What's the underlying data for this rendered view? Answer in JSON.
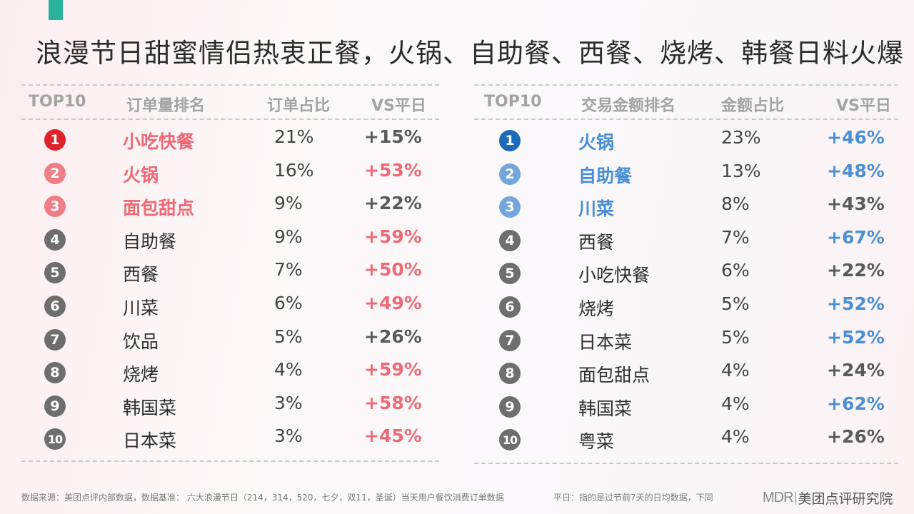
{
  "title": "浪漫节日甜蜜情侣热衷正餐，火锅、自助餐、西餐、烧烤、韩餐日料火爆",
  "colors": {
    "accent": "#2ab39a",
    "red_rank1": "#e0232a",
    "pink_rank": "#ef7e86",
    "pink_text": "#ee6a76",
    "gray_badge": "#6e6e6e",
    "blue_rank1": "#1d6bb8",
    "blue_rank": "#72a6dd",
    "blue_text": "#4a8fd6"
  },
  "left": {
    "headers": [
      "TOP10",
      "订单量排名",
      "订单占比",
      "VS平日"
    ],
    "rows": [
      {
        "rank": "1",
        "name": "小吃快餐",
        "pct": "21%",
        "vs": "+15%"
      },
      {
        "rank": "2",
        "name": "火锅",
        "pct": "16%",
        "vs": "+53%"
      },
      {
        "rank": "3",
        "name": "面包甜点",
        "pct": "9%",
        "vs": "+22%"
      },
      {
        "rank": "4",
        "name": "自助餐",
        "pct": "9%",
        "vs": "+59%"
      },
      {
        "rank": "5",
        "name": "西餐",
        "pct": "7%",
        "vs": "+50%"
      },
      {
        "rank": "6",
        "name": "川菜",
        "pct": "6%",
        "vs": "+49%"
      },
      {
        "rank": "7",
        "name": "饮品",
        "pct": "5%",
        "vs": "+26%"
      },
      {
        "rank": "8",
        "name": "烧烤",
        "pct": "4%",
        "vs": "+59%"
      },
      {
        "rank": "9",
        "name": "韩国菜",
        "pct": "3%",
        "vs": "+58%"
      },
      {
        "rank": "10",
        "name": "日本菜",
        "pct": "3%",
        "vs": "+45%"
      }
    ]
  },
  "right": {
    "headers": [
      "TOP10",
      "交易金额排名",
      "金额占比",
      "VS平日"
    ],
    "rows": [
      {
        "rank": "1",
        "name": "火锅",
        "pct": "23%",
        "vs": "+46%"
      },
      {
        "rank": "2",
        "name": "自助餐",
        "pct": "13%",
        "vs": "+48%"
      },
      {
        "rank": "3",
        "name": "川菜",
        "pct": "8%",
        "vs": "+43%"
      },
      {
        "rank": "4",
        "name": "西餐",
        "pct": "7%",
        "vs": "+67%"
      },
      {
        "rank": "5",
        "name": "小吃快餐",
        "pct": "6%",
        "vs": "+22%"
      },
      {
        "rank": "6",
        "name": "烧烤",
        "pct": "5%",
        "vs": "+52%"
      },
      {
        "rank": "7",
        "name": "日本菜",
        "pct": "5%",
        "vs": "+52%"
      },
      {
        "rank": "8",
        "name": "面包甜点",
        "pct": "4%",
        "vs": "+24%"
      },
      {
        "rank": "9",
        "name": "韩国菜",
        "pct": "4%",
        "vs": "+62%"
      },
      {
        "rank": "10",
        "name": "粤菜",
        "pct": "4%",
        "vs": "+26%"
      }
    ]
  },
  "footer": {
    "source": "数据来源：美团点评内部数据，数据基准： 六大浪漫节日（214，314，520，七夕，双11，圣诞）当天用户餐饮消费订单数据",
    "note": "平日：指的是过节前7天的日均数据，下同",
    "logo_mark": "MDR",
    "logo_text": "美团点评研究院"
  }
}
